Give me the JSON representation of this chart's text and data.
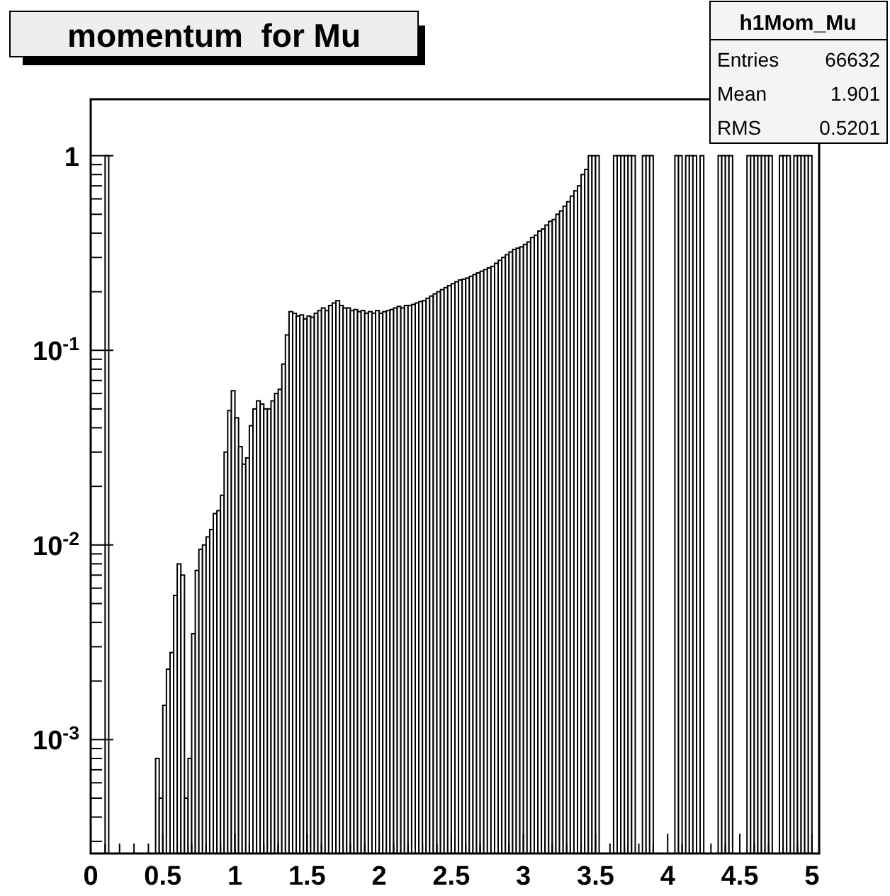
{
  "chart_data": {
    "type": "histogram",
    "title": "momentum  for Mu",
    "annotations": [
      "h1Mom_Mu",
      "Entries",
      "66632",
      "Mean",
      "1.901",
      "RMS",
      "0.5201"
    ],
    "log": true,
    "color": "#000000",
    "xlim": [
      0,
      5.05
    ],
    "ylim": [
      0.00026,
      1.95
    ],
    "xticks": [
      0,
      {
        "value": 0.1,
        "label": null
      },
      {
        "value": 0.2,
        "label": null
      },
      {
        "value": 0.3,
        "label": null
      },
      {
        "value": 0.4,
        "label": null
      },
      0.5,
      {
        "value": 0.6,
        "label": null
      },
      {
        "value": 0.7,
        "label": null
      },
      {
        "value": 0.8,
        "label": null
      },
      {
        "value": 0.9,
        "label": null
      },
      1,
      {
        "value": 1.1,
        "label": null
      },
      {
        "value": 1.2,
        "label": null
      },
      {
        "value": 1.3,
        "label": null
      },
      {
        "value": 1.4,
        "label": null
      },
      1.5,
      {
        "value": 1.6,
        "label": null
      },
      {
        "value": 1.7,
        "label": null
      },
      {
        "value": 1.8,
        "label": null
      },
      {
        "value": 1.9,
        "label": null
      },
      2,
      {
        "value": 2.1,
        "label": null
      },
      {
        "value": 2.2,
        "label": null
      },
      {
        "value": 2.3,
        "label": null
      },
      {
        "value": 2.4,
        "label": null
      },
      2.5,
      {
        "value": 2.6,
        "label": null
      },
      {
        "value": 2.7,
        "label": null
      },
      {
        "value": 2.8,
        "label": null
      },
      {
        "value": 2.9,
        "label": null
      },
      3,
      {
        "value": 3.1,
        "label": null
      },
      {
        "value": 3.2,
        "label": null
      },
      {
        "value": 3.3,
        "label": null
      },
      {
        "value": 3.4,
        "label": null
      },
      3.5,
      {
        "value": 3.6,
        "label": null
      },
      {
        "value": 3.7,
        "label": null
      },
      {
        "value": 3.8,
        "label": null
      },
      {
        "value": 3.9,
        "label": null
      },
      4,
      {
        "value": 4.1,
        "label": null
      },
      {
        "value": 4.2,
        "label": null
      },
      {
        "value": 4.3,
        "label": null
      },
      {
        "value": 4.4,
        "label": null
      },
      4.5,
      {
        "value": 4.6,
        "label": null
      },
      {
        "value": 4.7,
        "label": null
      },
      {
        "value": 4.8,
        "label": null
      },
      {
        "value": 4.9,
        "label": null
      },
      5
    ],
    "yticks": [
      {
        "value": 0.0003,
        "label": null
      },
      {
        "value": 0.0004,
        "label": null
      },
      {
        "value": 0.0005,
        "label": null
      },
      {
        "value": 0.0006,
        "label": null
      },
      {
        "value": 0.0007,
        "label": null
      },
      {
        "value": 0.0008,
        "label": null
      },
      {
        "value": 0.0009,
        "label": null
      },
      {
        "value": 0.001,
        "label": "10$^{-3}$"
      },
      {
        "value": 0.002,
        "label": null
      },
      {
        "value": 0.003,
        "label": null
      },
      {
        "value": 0.004,
        "label": null
      },
      {
        "value": 0.005,
        "label": null
      },
      {
        "value": 0.006,
        "label": null
      },
      {
        "value": 0.007,
        "label": null
      },
      {
        "value": 0.008,
        "label": null
      },
      {
        "value": 0.009,
        "label": null
      },
      {
        "value": 0.01,
        "label": "10$^{-2}$"
      },
      {
        "value": 0.02,
        "label": null
      },
      {
        "value": 0.03,
        "label": null
      },
      {
        "value": 0.04,
        "label": null
      },
      {
        "value": 0.05,
        "label": null
      },
      {
        "value": 0.06,
        "label": null
      },
      {
        "value": 0.07,
        "label": null
      },
      {
        "value": 0.08,
        "label": null
      },
      {
        "value": 0.09,
        "label": null
      },
      {
        "value": 0.1,
        "label": "10$^{-1}$"
      },
      {
        "value": 0.2,
        "label": null
      },
      {
        "value": 0.3,
        "label": null
      },
      {
        "value": 0.4,
        "label": null
      },
      {
        "value": 0.5,
        "label": null
      },
      {
        "value": 0.6,
        "label": null
      },
      {
        "value": 0.7,
        "label": null
      },
      {
        "value": 0.8,
        "label": null
      },
      {
        "value": 0.9,
        "label": null
      },
      1
    ],
    "bins": [
      0.1,
      0.125,
      0.45,
      0.475,
      0.5,
      0.525,
      0.55,
      0.575,
      0.6,
      0.625,
      0.65,
      0.675,
      0.7,
      0.725,
      0.75,
      0.775,
      0.8,
      0.825,
      0.85,
      0.875,
      0.9,
      0.925,
      0.95,
      0.975,
      1,
      1.025,
      1.05,
      1.075,
      1.1,
      1.125,
      1.15,
      1.175,
      1.2,
      1.225,
      1.25,
      1.275,
      1.3,
      1.325,
      1.35,
      1.375,
      1.4,
      1.425,
      1.45,
      1.475,
      1.5,
      1.525,
      1.55,
      1.575,
      1.6,
      1.625,
      1.65,
      1.675,
      1.7,
      1.725,
      1.75,
      1.775,
      1.8,
      1.825,
      1.85,
      1.875,
      1.9,
      1.925,
      1.95,
      1.975,
      2,
      2.025,
      2.05,
      2.075,
      2.1,
      2.125,
      2.15,
      2.175,
      2.2,
      2.225,
      2.25,
      2.275,
      2.3,
      2.325,
      2.35,
      2.375,
      2.4,
      2.425,
      2.45,
      2.475,
      2.5,
      2.525,
      2.55,
      2.575,
      2.6,
      2.625,
      2.65,
      2.675,
      2.7,
      2.725,
      2.75,
      2.775,
      2.8,
      2.825,
      2.85,
      2.875,
      2.9,
      2.925,
      2.95,
      2.975,
      3,
      3.025,
      3.05,
      3.075,
      3.1,
      3.125,
      3.15,
      3.175,
      3.2,
      3.225,
      3.25,
      3.275,
      3.3,
      3.325,
      3.35,
      3.375,
      3.4,
      3.425,
      3.45,
      3.475,
      3.5,
      3.525,
      3.625,
      3.65,
      3.675,
      3.7,
      3.725,
      3.75,
      3.775,
      3.825,
      3.85,
      3.875,
      3.9,
      4.05,
      4.075,
      4.1,
      4.125,
      4.15,
      4.175,
      4.2,
      4.225,
      4.25,
      4.35,
      4.375,
      4.4,
      4.425,
      4.45,
      4.55,
      4.575,
      4.6,
      4.625,
      4.65,
      4.675,
      4.7,
      4.725,
      4.775,
      4.8,
      4.825,
      4.85,
      4.875,
      4.9,
      4.925,
      4.95,
      4.975,
      5
    ],
    "values": [
      1,
      null,
      0.0008,
      0.0005,
      0.0015,
      0.0023,
      0.0028,
      0.0055,
      0.008,
      0.007,
      0.0005,
      0.0008,
      0.0035,
      0.0074,
      0.0095,
      0.01,
      0.011,
      0.012,
      0.0145,
      0.015,
      0.018,
      0.03,
      0.049,
      0.062,
      0.045,
      0.032,
      0.026,
      0.028,
      0.041,
      0.05,
      0.055,
      0.053,
      0.05,
      0.05,
      0.055,
      0.06,
      0.063,
      0.085,
      0.12,
      0.158,
      0.155,
      0.15,
      0.152,
      0.145,
      0.15,
      0.148,
      0.155,
      0.16,
      0.165,
      0.16,
      0.17,
      0.175,
      0.18,
      0.17,
      0.165,
      0.165,
      0.16,
      0.162,
      0.158,
      0.16,
      0.155,
      0.158,
      0.155,
      0.16,
      0.155,
      0.158,
      0.16,
      0.162,
      0.165,
      0.168,
      0.165,
      0.17,
      0.17,
      0.172,
      0.175,
      0.178,
      0.18,
      0.185,
      0.19,
      0.195,
      0.2,
      0.205,
      0.21,
      0.215,
      0.22,
      0.225,
      0.23,
      0.232,
      0.235,
      0.24,
      0.245,
      0.25,
      0.255,
      0.26,
      0.265,
      0.27,
      0.28,
      0.29,
      0.3,
      0.31,
      0.32,
      0.33,
      0.335,
      0.34,
      0.35,
      0.36,
      0.38,
      0.39,
      0.41,
      0.42,
      0.44,
      0.46,
      0.47,
      0.5,
      0.52,
      0.55,
      0.58,
      0.62,
      0.66,
      0.7,
      0.8,
      0.85,
      1,
      1,
      1,
      null,
      1,
      1,
      1,
      1,
      1,
      1,
      null,
      1,
      1,
      1,
      null,
      1,
      1,
      null,
      1,
      1,
      1,
      null,
      1,
      null,
      1,
      1,
      1,
      1,
      null,
      1,
      1,
      1,
      1,
      1,
      1,
      1,
      null,
      1,
      1,
      1,
      null,
      1,
      1,
      1,
      1,
      1
    ]
  }
}
